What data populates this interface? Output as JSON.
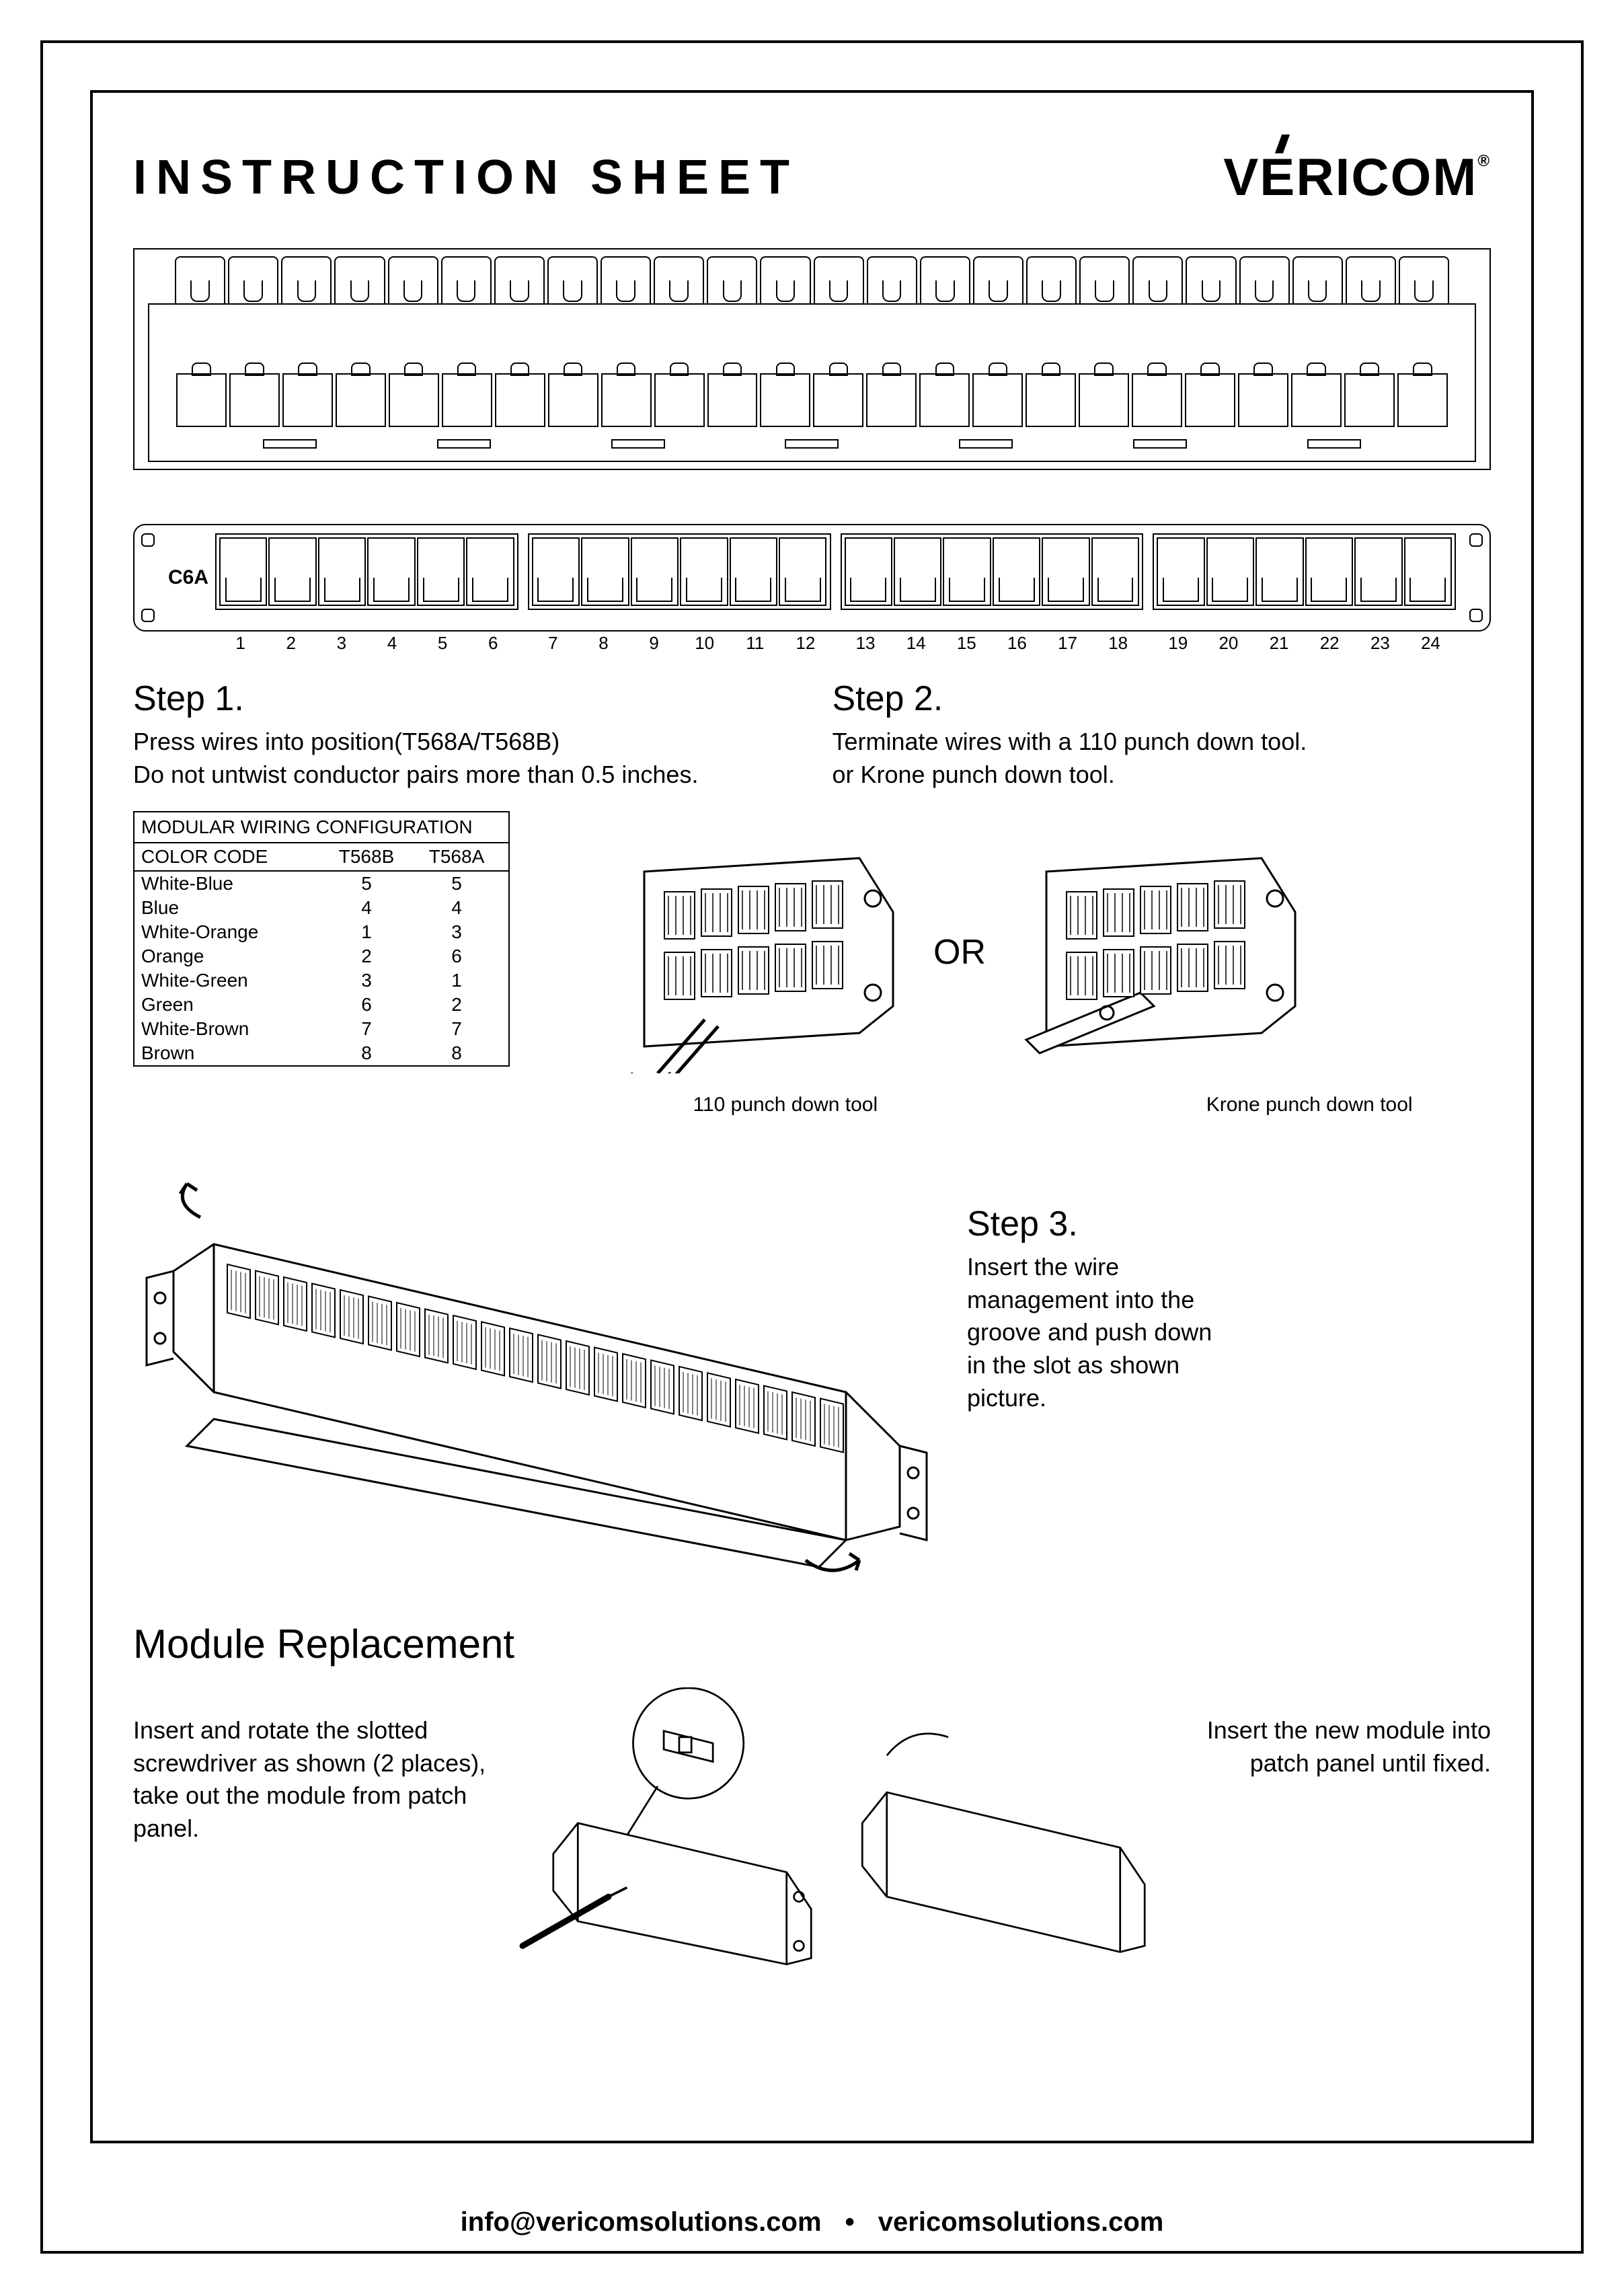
{
  "header": {
    "title": "INSTRUCTION SHEET",
    "brand": "VERICOM"
  },
  "panel": {
    "category_label": "C6A",
    "port_count": 24,
    "port_numbers": [
      "1",
      "2",
      "3",
      "4",
      "5",
      "6",
      "7",
      "8",
      "9",
      "10",
      "11",
      "12",
      "13",
      "14",
      "15",
      "16",
      "17",
      "18",
      "19",
      "20",
      "21",
      "22",
      "23",
      "24"
    ]
  },
  "step1": {
    "title": "Step 1.",
    "line1": "Press wires into position(T568A/T568B)",
    "line2": "Do not untwist conductor pairs more than 0.5 inches."
  },
  "step2": {
    "title": "Step 2.",
    "line1": "Terminate wires with a 110 punch down tool.",
    "line2": "or Krone punch down tool.",
    "or_label": "OR",
    "tool1_caption": "110 punch down tool",
    "tool2_caption": "Krone punch down tool"
  },
  "wiring_table": {
    "header": "MODULAR WIRING CONFIGURATION",
    "col1": "COLOR CODE",
    "col2": "T568B",
    "col3": "T568A",
    "rows": [
      {
        "color": "White-Blue",
        "b": "5",
        "a": "5"
      },
      {
        "color": "Blue",
        "b": "4",
        "a": "4"
      },
      {
        "color": "White-Orange",
        "b": "1",
        "a": "3"
      },
      {
        "color": "Orange",
        "b": "2",
        "a": "6"
      },
      {
        "color": "White-Green",
        "b": "3",
        "a": "1"
      },
      {
        "color": "Green",
        "b": "6",
        "a": "2"
      },
      {
        "color": "White-Brown",
        "b": "7",
        "a": "7"
      },
      {
        "color": "Brown",
        "b": "8",
        "a": "8"
      }
    ]
  },
  "step3": {
    "title": "Step 3.",
    "text": "Insert the wire management into the groove and push down in the slot as shown picture."
  },
  "module": {
    "title": "Module Replacement",
    "left_text": "Insert and rotate the slotted screwdriver as shown (2 places), take out the module from patch panel.",
    "right_text": "Insert the new module into patch panel until fixed."
  },
  "footer": {
    "email": "info@vericomsolutions.com",
    "site": "vericomsolutions.com"
  },
  "style": {
    "stroke": "#000000",
    "background": "#ffffff",
    "stroke_width": 2,
    "title_fontsize": 72,
    "step_title_fontsize": 52,
    "body_fontsize": 36,
    "footer_fontsize": 40
  }
}
